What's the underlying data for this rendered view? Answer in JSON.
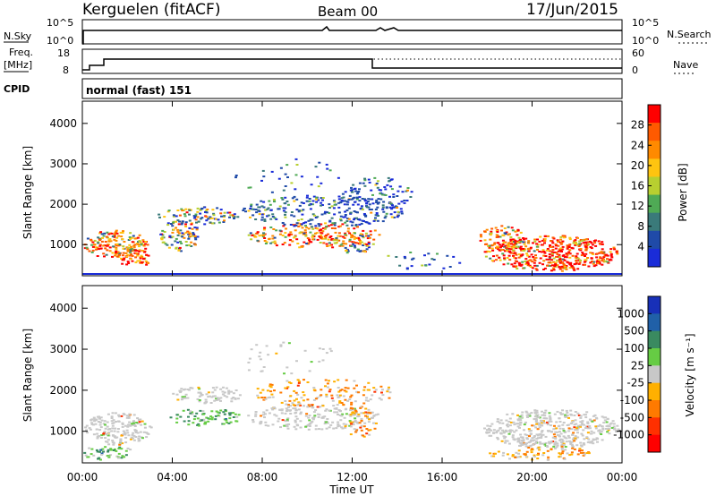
{
  "header": {
    "station": "Kerguelen (fitACF)",
    "beam": "Beam 00",
    "date": "17/Jun/2015"
  },
  "top_panels": {
    "nsky_label": "N.Sky",
    "nsky_ticks": [
      "10^5",
      "10^0"
    ],
    "nsearch_label": "N.Search",
    "nsearch_ticks": [
      "10^5",
      "10^0"
    ],
    "freq_label_1": "Freq.",
    "freq_label_2": "[MHz]",
    "freq_ticks": [
      "18",
      "8"
    ],
    "nave_label": "Nave",
    "nave_ticks": [
      "60",
      "0"
    ],
    "cpid_label": "CPID",
    "cpid_text": "normal (fast) 151"
  },
  "chart_data": [
    {
      "type": "heatmap",
      "name": "power",
      "ylabel": "Slant Range [km]",
      "y_ticks": [
        "1000",
        "2000",
        "3000",
        "4000"
      ],
      "colorbar_label": "Power [dB]",
      "colorbar_ticks": [
        "4",
        "8",
        "12",
        "16",
        "20",
        "24",
        "28"
      ],
      "colorbar_colors": [
        "#1a2cd8",
        "#1f4aa8",
        "#3a7a7a",
        "#4faa55",
        "#b8cf30",
        "#ffc410",
        "#ff8a00",
        "#ff5a00",
        "#ff0000"
      ]
    },
    {
      "type": "heatmap",
      "name": "velocity",
      "ylabel": "Slant Range [km]",
      "y_ticks": [
        "1000",
        "2000",
        "3000",
        "4000"
      ],
      "colorbar_label": "Velocity [m s⁻¹]",
      "colorbar_ticks": [
        "1000",
        "500",
        "100",
        "25",
        "-25",
        "-100",
        "-500",
        "-1000"
      ],
      "colorbar_colors": [
        "#1830b8",
        "#2060a8",
        "#3a8a60",
        "#66cc44",
        "#c8c8c8",
        "#ffb000",
        "#ff7a00",
        "#ff3000",
        "#ff0000"
      ]
    }
  ],
  "x_axis": {
    "ticks": [
      "00:00",
      "04:00",
      "08:00",
      "12:00",
      "16:00",
      "20:00",
      "00:00"
    ],
    "label": "Time UT"
  }
}
